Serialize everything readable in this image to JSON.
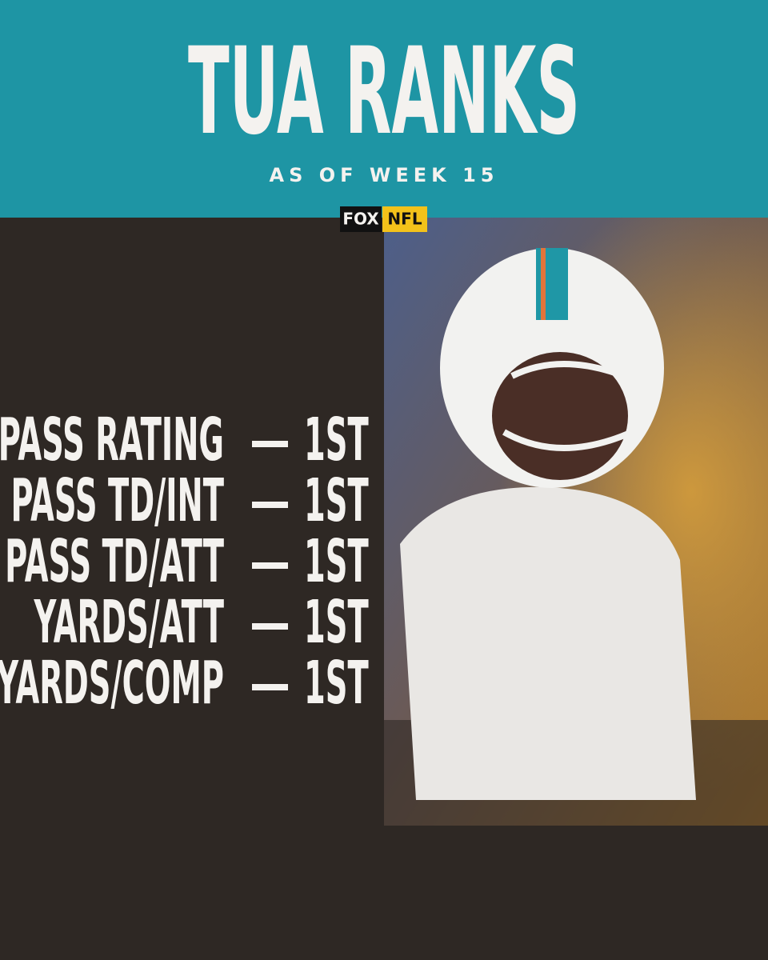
{
  "header": {
    "title": "TUA RANKS",
    "subtitle": "AS OF WEEK 15"
  },
  "logo": {
    "network": "FOX",
    "league": "NFL"
  },
  "stats": [
    {
      "label": "PASS RATING",
      "rank": "1ST"
    },
    {
      "label": "PASS TD/INT",
      "rank": "1ST"
    },
    {
      "label": "PASS TD/ATT",
      "rank": "1ST"
    },
    {
      "label": "YARDS/ATT",
      "rank": "1ST"
    },
    {
      "label": "YARDS/COMP",
      "rank": "1ST"
    }
  ]
}
